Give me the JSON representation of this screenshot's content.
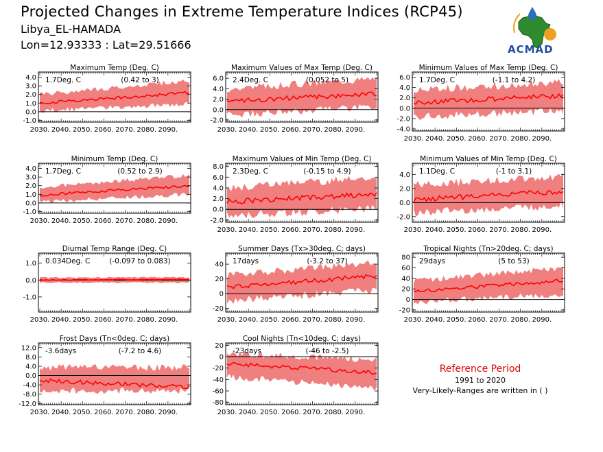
{
  "header": {
    "title": "Projected Changes in Extreme Temperature Indices (RCP45)",
    "location": "Libya_EL-HAMADA",
    "coordinates": "Lon=12.93333 : Lat=29.51666"
  },
  "logo": {
    "text": "ACMAD"
  },
  "reference": {
    "title": "Reference Period",
    "period": "1991 to 2020",
    "note": "Very-Likely-Ranges are written in ( )"
  },
  "colors": {
    "band": "#f08080",
    "line": "#ff0000",
    "zero": "#000000"
  },
  "chart_data": [
    {
      "type": "area",
      "title": "Maximum Temp (Deg. C)",
      "value_label": "1.7Deg. C",
      "range_label": "(0.42 to 3)",
      "xticks": [
        "2030.",
        "2040.",
        "2050.",
        "2060.",
        "2070.",
        "2080.",
        "2090."
      ],
      "yticks": [
        "4.0",
        "3.0",
        "2.0",
        "1.0",
        "0.0",
        "-1.0"
      ],
      "ylim": [
        -1.2,
        4.6
      ],
      "series": {
        "start": 1.0,
        "end": 2.2,
        "low_start": 0.1,
        "low_end": 0.9,
        "high_start": 2.0,
        "high_end": 3.6
      }
    },
    {
      "type": "area",
      "title": "Maximum Values of Max Temp (Deg. C)",
      "value_label": "2.4Deg. C",
      "range_label": "(0.052 to 5)",
      "xticks": [
        "2030.",
        "2040.",
        "2050.",
        "2060.",
        "2070.",
        "2080.",
        "2090."
      ],
      "yticks": [
        "6.0",
        "4.0",
        "2.0",
        "0.0",
        "-2.0"
      ],
      "ylim": [
        -2.4,
        7.2
      ],
      "series": {
        "start": 1.6,
        "end": 3.0,
        "low_start": -1.0,
        "low_end": 0.5,
        "high_start": 4.0,
        "high_end": 6.0
      }
    },
    {
      "type": "area",
      "title": "Minimum Values of Max Temp (Deg. C)",
      "value_label": "1.7Deg. C",
      "range_label": "(-1.1 to 4.2)",
      "xticks": [
        "2030.",
        "2040.",
        "2050.",
        "2060.",
        "2070.",
        "2080.",
        "2090."
      ],
      "yticks": [
        "6.0",
        "4.0",
        "2.0",
        "0.0",
        "-2.0",
        "-4.0"
      ],
      "ylim": [
        -4.4,
        7.0
      ],
      "series": {
        "start": 1.0,
        "end": 2.5,
        "low_start": -1.6,
        "low_end": -0.5,
        "high_start": 3.5,
        "high_end": 5.0
      }
    },
    {
      "type": "area",
      "title": "Minimum Temp (Deg. C)",
      "value_label": "1.7Deg. C",
      "range_label": "(0.52 to 2.9)",
      "xticks": [
        "2030.",
        "2040.",
        "2050.",
        "2060.",
        "2070.",
        "2080.",
        "2090."
      ],
      "yticks": [
        "4.0",
        "3.0",
        "2.0",
        "1.0",
        "0.0",
        "-1.0"
      ],
      "ylim": [
        -1.2,
        4.6
      ],
      "series": {
        "start": 0.9,
        "end": 2.0,
        "low_start": 0.1,
        "low_end": 1.0,
        "high_start": 1.8,
        "high_end": 3.2
      }
    },
    {
      "type": "area",
      "title": "Maximum Values of Min Temp (Deg. C)",
      "value_label": "2.3Deg. C",
      "range_label": "(-0.15 to 4.9)",
      "xticks": [
        "2030.",
        "2040.",
        "2050.",
        "2060.",
        "2070.",
        "2080.",
        "2090."
      ],
      "yticks": [
        "8.0",
        "6.0",
        "4.0",
        "2.0",
        "0.0",
        "-2.0"
      ],
      "ylim": [
        -2.4,
        8.6
      ],
      "series": {
        "start": 1.4,
        "end": 2.8,
        "low_start": -1.2,
        "low_end": 0.2,
        "high_start": 4.0,
        "high_end": 6.0
      }
    },
    {
      "type": "area",
      "title": "Minimum Values of Min Temp (Deg. C)",
      "value_label": "1.1Deg. C",
      "range_label": "(-1 to 3.1)",
      "xticks": [
        "2030.",
        "2040.",
        "2050.",
        "2060.",
        "2070.",
        "2080.",
        "2090."
      ],
      "yticks": [
        "4.0",
        "2.0",
        "0.0",
        "-2.0"
      ],
      "ylim": [
        -2.8,
        5.6
      ],
      "series": {
        "start": 0.4,
        "end": 1.6,
        "low_start": -1.5,
        "low_end": -0.4,
        "high_start": 2.5,
        "high_end": 3.8
      }
    },
    {
      "type": "area",
      "title": "Diurnal Temp Range (Deg. C)",
      "value_label": "0.034Deg. C",
      "range_label": "(-0.097 to 0.083)",
      "xticks": [
        "2030.",
        "2040.",
        "2050.",
        "2060.",
        "2070.",
        "2080.",
        "2090."
      ],
      "yticks": [
        "1.0",
        "0.0",
        "-1.0"
      ],
      "ylim": [
        -1.9,
        1.6
      ],
      "series": {
        "start": 0.0,
        "end": 0.05,
        "low_start": -0.15,
        "low_end": -0.15,
        "high_start": 0.15,
        "high_end": 0.15
      }
    },
    {
      "type": "area",
      "title": "Summer Days (Tx>30deg. C; days)",
      "value_label": "17days",
      "range_label": "(-3.2 to 37)",
      "xticks": [
        "2030.",
        "2040.",
        "2050.",
        "2060.",
        "2070.",
        "2080.",
        "2090."
      ],
      "yticks": [
        "40",
        "20",
        "0",
        "-20"
      ],
      "ylim": [
        -25,
        55
      ],
      "series": {
        "start": 9,
        "end": 24,
        "low_start": -10,
        "low_end": 5,
        "high_start": 25,
        "high_end": 42
      }
    },
    {
      "type": "area",
      "title": "Tropical Nights (Tn>20deg. C; days)",
      "value_label": "29days",
      "range_label": "(5 to 53)",
      "xticks": [
        "2030.",
        "2040.",
        "2050.",
        "2060.",
        "2070.",
        "2080.",
        "2090."
      ],
      "yticks": [
        "80",
        "60",
        "40",
        "20",
        "0",
        "-20"
      ],
      "ylim": [
        -24,
        88
      ],
      "series": {
        "start": 15,
        "end": 36,
        "low_start": -5,
        "low_end": 10,
        "high_start": 35,
        "high_end": 60
      }
    },
    {
      "type": "area",
      "title": "Frost Days (Tn<0deg. C; days)",
      "value_label": "-3.6days",
      "range_label": "(-7.2 to 4.6)",
      "xticks": [
        "2030.",
        "2040.",
        "2050.",
        "2060.",
        "2070.",
        "2080.",
        "2090."
      ],
      "yticks": [
        "12.0",
        "8.0",
        "4.0",
        "0.0",
        "-4.0",
        "-8.0",
        "-12.0"
      ],
      "ylim": [
        -12.5,
        14.0
      ],
      "series": {
        "start": -2.0,
        "end": -5.0,
        "low_start": -6.5,
        "low_end": -6.5,
        "high_start": 3.5,
        "high_end": 3.5
      }
    },
    {
      "type": "area",
      "title": "Cool Nights (Tn<10deg. C; days)",
      "value_label": "-23days",
      "range_label": "(-46 to -2.5)",
      "xticks": [
        "2030.",
        "2040.",
        "2050.",
        "2060.",
        "2070.",
        "2080.",
        "2090."
      ],
      "yticks": [
        "20",
        "0",
        "-20",
        "-40",
        "-60",
        "-80"
      ],
      "ylim": [
        -84,
        24
      ],
      "series": {
        "start": -12,
        "end": -28,
        "low_start": -35,
        "low_end": -55,
        "high_start": 5,
        "high_end": -5
      }
    }
  ]
}
